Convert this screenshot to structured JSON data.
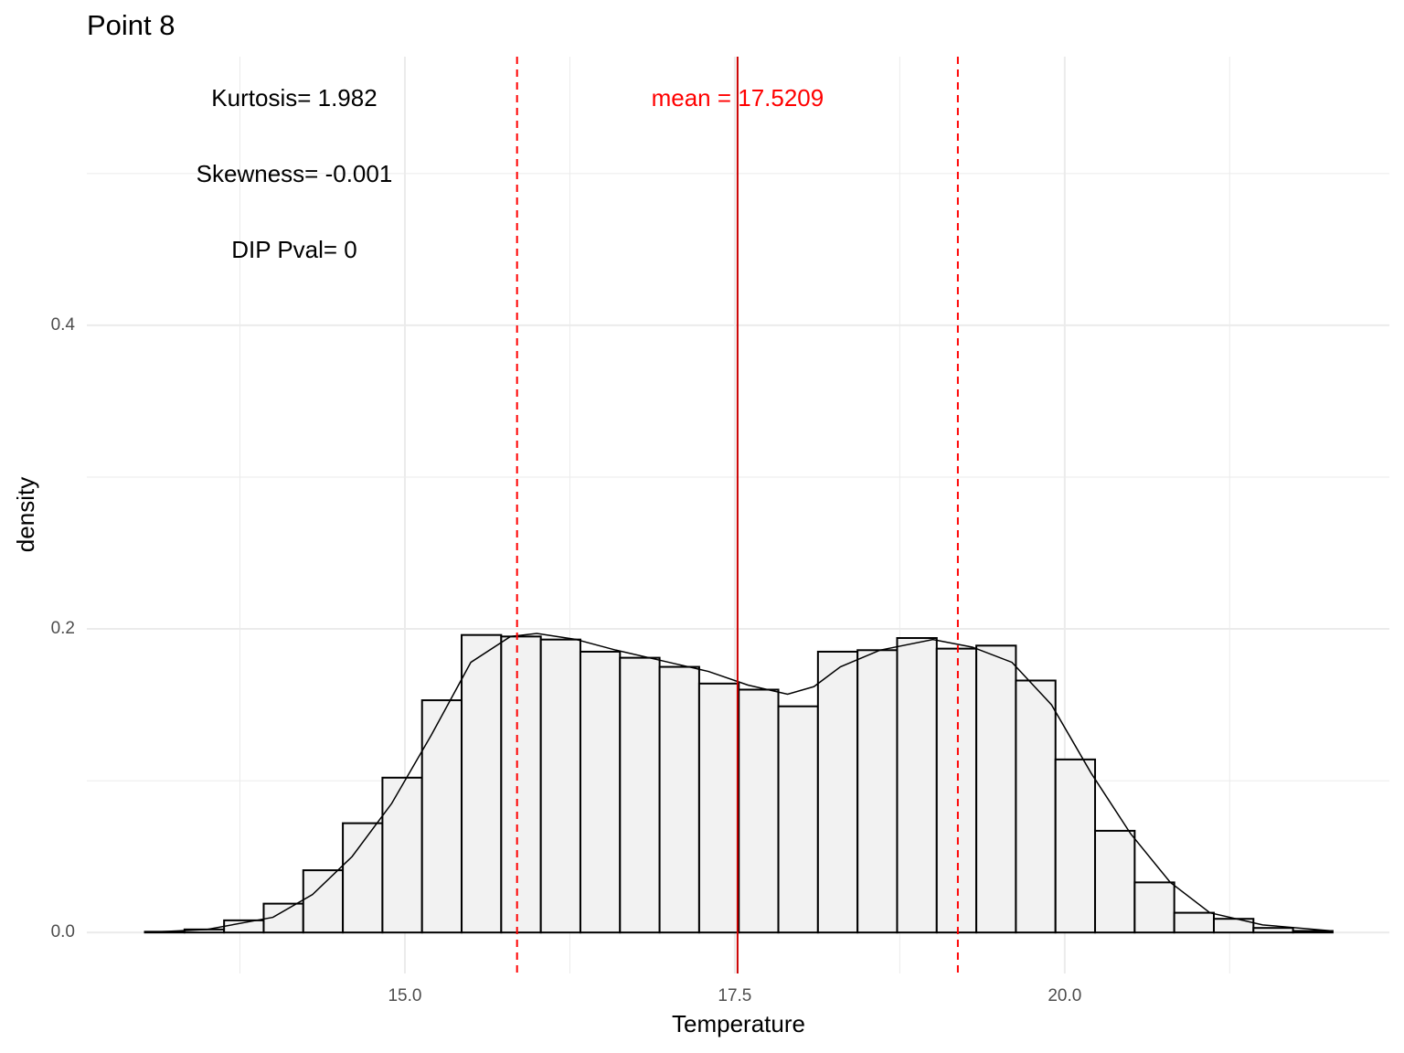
{
  "chart_data": {
    "type": "histogram",
    "title": "Point 8",
    "x_label": "Temperature",
    "y_label": "density",
    "xlim": [
      12.59,
      22.46
    ],
    "ylim": [
      -0.027,
      0.577
    ],
    "xticks": [
      {
        "value": 15,
        "label": "15.0"
      },
      {
        "value": 17.5,
        "label": "17.5"
      },
      {
        "value": 20,
        "label": "20.0"
      }
    ],
    "yticks": [
      {
        "value": 0,
        "label": "0.0"
      },
      0.2,
      0.4
    ],
    "xminor": [
      13.75,
      16.25,
      18.75,
      21.25
    ],
    "yminor": [
      0.1,
      0.3,
      0.5
    ],
    "grid": true,
    "bins": [
      13.03,
      13.33,
      13.63,
      13.93,
      14.23,
      14.53,
      14.83,
      15.13,
      15.43,
      15.73,
      16.03,
      16.33,
      16.63,
      16.93,
      17.23,
      17.53,
      17.83,
      18.13,
      18.43,
      18.73,
      19.03,
      19.33,
      19.63,
      19.93,
      20.23,
      20.53,
      20.83,
      21.13,
      21.43,
      21.73,
      22.03
    ],
    "values": [
      0.0005,
      0.002,
      0.008,
      0.019,
      0.041,
      0.072,
      0.102,
      0.153,
      0.196,
      0.195,
      0.193,
      0.185,
      0.181,
      0.175,
      0.164,
      0.16,
      0.149,
      0.185,
      0.186,
      0.194,
      0.187,
      0.189,
      0.166,
      0.114,
      0.067,
      0.033,
      0.013,
      0.009,
      0.003,
      0.001
    ],
    "color": "#f2f2f2",
    "density": {
      "x": [
        13.03,
        13.5,
        14.0,
        14.3,
        14.6,
        14.9,
        15.2,
        15.5,
        15.8,
        16.0,
        16.3,
        16.6,
        17.0,
        17.3,
        17.6,
        17.9,
        18.1,
        18.3,
        18.6,
        19.0,
        19.3,
        19.6,
        19.9,
        20.2,
        20.5,
        20.8,
        21.1,
        21.5,
        22.03
      ],
      "y": [
        0.0,
        0.002,
        0.01,
        0.025,
        0.05,
        0.085,
        0.13,
        0.178,
        0.195,
        0.197,
        0.193,
        0.186,
        0.178,
        0.172,
        0.163,
        0.157,
        0.162,
        0.175,
        0.186,
        0.193,
        0.188,
        0.178,
        0.15,
        0.105,
        0.065,
        0.033,
        0.013,
        0.005,
        0.001
      ]
    },
    "mean_line": {
      "value": 17.5209,
      "label": "mean = 17.5209",
      "color": "#cc0000",
      "label_color": "#ff0000"
    },
    "sd_lines": {
      "values": [
        15.85,
        19.19
      ],
      "color": "#ff0000"
    },
    "annotations": [
      "Kurtosis= 1.982",
      "Skewness= -0.001",
      "DIP Pval= 0"
    ]
  }
}
